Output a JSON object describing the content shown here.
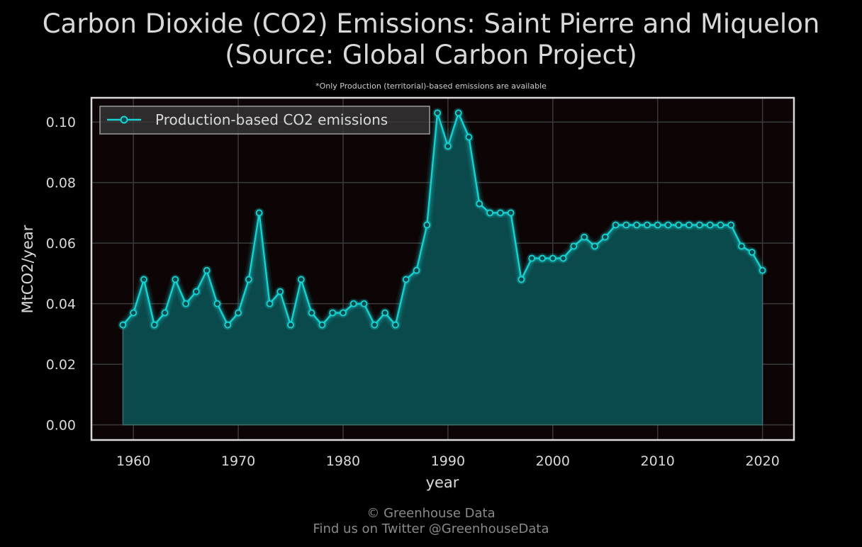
{
  "chart_data": {
    "type": "area",
    "title_line1": "Carbon Dioxide (CO2) Emissions: Saint Pierre and Miquelon",
    "title_line2": "(Source: Global Carbon Project)",
    "subtitle": "*Only Production (territorial)-based emissions are available",
    "xlabel": "year",
    "ylabel": "MtCO2/year",
    "xlim": [
      1956,
      2023
    ],
    "ylim": [
      -0.005,
      0.108
    ],
    "x_ticks": [
      1960,
      1970,
      1980,
      1990,
      2000,
      2010,
      2020
    ],
    "y_ticks": [
      0.0,
      0.02,
      0.04,
      0.06,
      0.08,
      0.1
    ],
    "y_tick_labels": [
      "0.00",
      "0.02",
      "0.04",
      "0.06",
      "0.08",
      "0.10"
    ],
    "grid": true,
    "legend_position": "top-left",
    "series": [
      {
        "name": "Production-based CO2 emissions",
        "color": "#19d3d3",
        "x": [
          1959,
          1960,
          1961,
          1962,
          1963,
          1964,
          1965,
          1966,
          1967,
          1968,
          1969,
          1970,
          1971,
          1972,
          1973,
          1974,
          1975,
          1976,
          1977,
          1978,
          1979,
          1980,
          1981,
          1982,
          1983,
          1984,
          1985,
          1986,
          1987,
          1988,
          1989,
          1990,
          1991,
          1992,
          1993,
          1994,
          1995,
          1996,
          1997,
          1998,
          1999,
          2000,
          2001,
          2002,
          2003,
          2004,
          2005,
          2006,
          2007,
          2008,
          2009,
          2010,
          2011,
          2012,
          2013,
          2014,
          2015,
          2016,
          2017,
          2018,
          2019,
          2020
        ],
        "values": [
          0.033,
          0.037,
          0.048,
          0.033,
          0.037,
          0.048,
          0.04,
          0.044,
          0.051,
          0.04,
          0.033,
          0.037,
          0.048,
          0.07,
          0.04,
          0.044,
          0.033,
          0.048,
          0.037,
          0.033,
          0.037,
          0.037,
          0.04,
          0.04,
          0.033,
          0.037,
          0.033,
          0.048,
          0.051,
          0.066,
          0.103,
          0.092,
          0.103,
          0.095,
          0.073,
          0.07,
          0.07,
          0.07,
          0.048,
          0.055,
          0.055,
          0.055,
          0.055,
          0.059,
          0.062,
          0.059,
          0.062,
          0.066,
          0.066,
          0.066,
          0.066,
          0.066,
          0.066,
          0.066,
          0.066,
          0.066,
          0.066,
          0.066,
          0.066,
          0.059,
          0.057,
          0.051
        ]
      }
    ]
  },
  "footer": {
    "line1": "© Greenhouse Data",
    "line2": "Find us on Twitter @GreenhouseData"
  },
  "colors": {
    "background": "#000000",
    "plot_background": "#0c0405",
    "accent": "#19d3d3",
    "fill": "#0b4a4c"
  }
}
